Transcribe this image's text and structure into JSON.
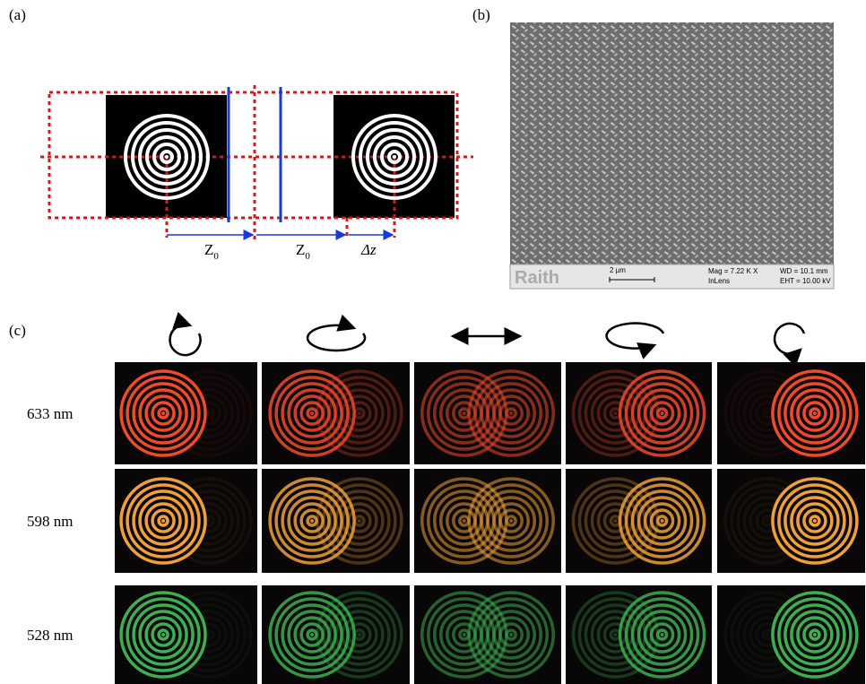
{
  "panel_a": {
    "label": "(a)",
    "distance_1": {
      "symbol": "Z",
      "subscript": "0"
    },
    "distance_2": {
      "symbol": "Z",
      "subscript": "0"
    },
    "shift": "Δz"
  },
  "panel_b": {
    "label": "(b)",
    "logo": "Raith",
    "scale_bar": "2 µm",
    "magnification": "Mag =  7.22 K X",
    "detector": "InLens",
    "working_distance": "WD = 10.1 mm",
    "voltage": "EHT = 10.00 kV"
  },
  "panel_c": {
    "label": "(c)",
    "rows": [
      "633 nm",
      "598 nm",
      "528 nm"
    ]
  }
}
